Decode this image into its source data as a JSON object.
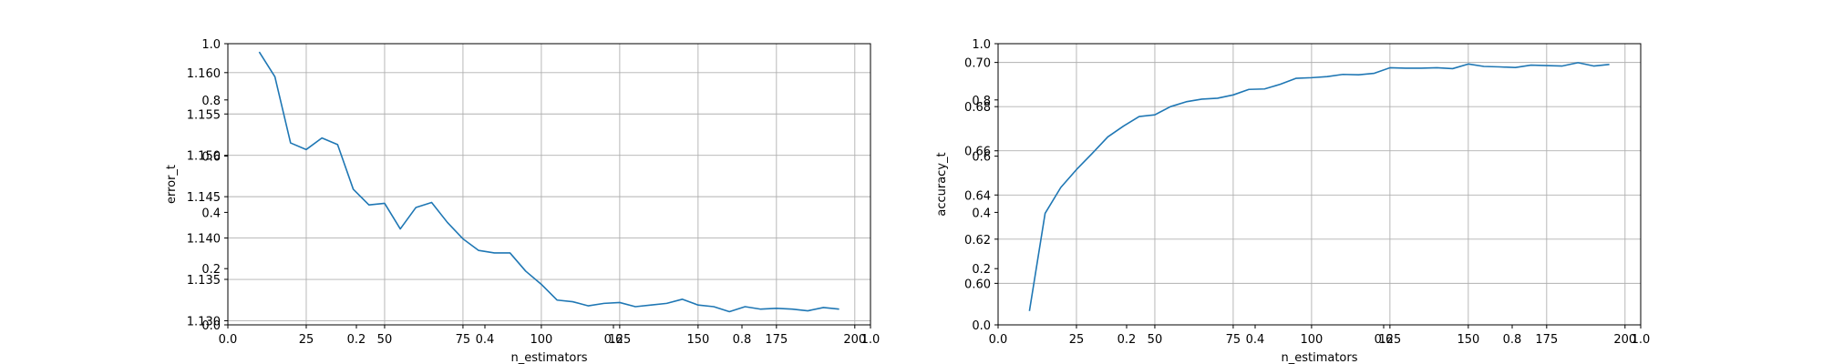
{
  "chart_data": [
    {
      "type": "line",
      "xlabel": "n_estimators",
      "ylabel": "error_t",
      "xlim": [
        0,
        205
      ],
      "ylim": [
        1.1295,
        1.1635
      ],
      "grid": true,
      "x_ticks": [
        "25",
        "50",
        "75",
        "100",
        "125",
        "150",
        "175",
        "200"
      ],
      "y_ticks": [
        "1.130",
        "1.135",
        "1.140",
        "1.145",
        "1.150",
        "1.155",
        "1.160"
      ],
      "overlay_x_ticks": [
        "0.0",
        "0.2",
        "0.4",
        "0.6",
        "0.8",
        "1.0"
      ],
      "overlay_y_ticks": [
        "0.0",
        "0.2",
        "0.4",
        "0.6",
        "0.8",
        "1.0"
      ],
      "series": [
        {
          "color": "#1f77b4",
          "x": [
            10,
            15,
            20,
            25,
            30,
            35,
            40,
            45,
            50,
            55,
            60,
            65,
            70,
            75,
            80,
            85,
            90,
            95,
            100,
            105,
            110,
            115,
            120,
            125,
            130,
            135,
            140,
            145,
            150,
            155,
            160,
            165,
            170,
            175,
            180,
            185,
            190,
            195
          ],
          "y": [
            1.1625,
            1.1595,
            1.1515,
            1.1507,
            1.1521,
            1.1513,
            1.1459,
            1.144,
            1.1442,
            1.1411,
            1.1437,
            1.1443,
            1.1419,
            1.1399,
            1.1385,
            1.1382,
            1.1382,
            1.136,
            1.1344,
            1.1325,
            1.1323,
            1.1318,
            1.1321,
            1.1322,
            1.1317,
            1.1319,
            1.1321,
            1.1326,
            1.1319,
            1.1317,
            1.1311,
            1.1317,
            1.1314,
            1.1315,
            1.1314,
            1.1312,
            1.1316,
            1.1314
          ]
        }
      ]
    },
    {
      "type": "line",
      "xlabel": "n_estimators",
      "ylabel": "accuracy_t",
      "xlim": [
        0,
        205
      ],
      "ylim": [
        0.5812,
        0.7085
      ],
      "grid": true,
      "x_ticks": [
        "25",
        "50",
        "75",
        "100",
        "125",
        "150",
        "175",
        "200"
      ],
      "y_ticks": [
        "0.60",
        "0.62",
        "0.64",
        "0.66",
        "0.68",
        "0.70"
      ],
      "overlay_x_ticks": [
        "0.0",
        "0.2",
        "0.4",
        "0.6",
        "0.8",
        "1.0"
      ],
      "overlay_y_ticks": [
        "0.0",
        "0.2",
        "0.4",
        "0.6",
        "0.8",
        "1.0"
      ],
      "series": [
        {
          "color": "#1f77b4",
          "x": [
            10,
            15,
            20,
            25,
            30,
            35,
            40,
            45,
            50,
            55,
            60,
            65,
            70,
            75,
            80,
            85,
            90,
            95,
            100,
            105,
            110,
            115,
            120,
            125,
            130,
            135,
            140,
            145,
            150,
            155,
            160,
            165,
            170,
            175,
            180,
            185,
            190,
            195
          ],
          "y": [
            0.5875,
            0.6317,
            0.6434,
            0.6515,
            0.6588,
            0.6663,
            0.6712,
            0.6755,
            0.6763,
            0.68,
            0.6822,
            0.6834,
            0.6838,
            0.6853,
            0.6878,
            0.688,
            0.6901,
            0.6928,
            0.6931,
            0.6936,
            0.6946,
            0.6944,
            0.6951,
            0.6976,
            0.6974,
            0.6974,
            0.6976,
            0.6972,
            0.6993,
            0.6982,
            0.698,
            0.6977,
            0.6988,
            0.6986,
            0.6984,
            0.6999,
            0.6984,
            0.6991
          ]
        }
      ]
    }
  ]
}
